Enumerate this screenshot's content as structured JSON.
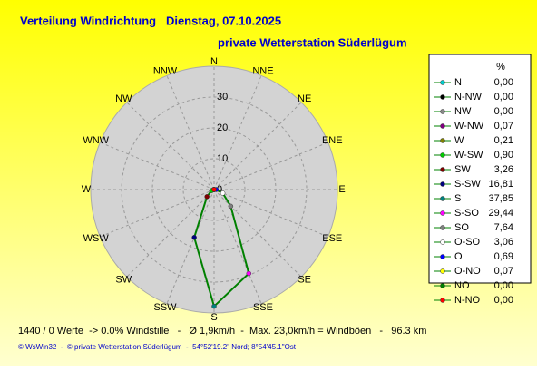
{
  "chart_data": {
    "type": "radar",
    "title": "Verteilung Windrichtung   Dienstag, 07.10.2025",
    "subtitle": "private Wetterstation Süderlügum",
    "axis_labels": [
      "N",
      "NNE",
      "NE",
      "ENE",
      "E",
      "ESE",
      "SE",
      "SSE",
      "S",
      "SSW",
      "SW",
      "WSW",
      "W",
      "WNW",
      "NW",
      "NNW"
    ],
    "rlim": [
      0,
      40
    ],
    "rticks": [
      0,
      10,
      20,
      30
    ],
    "line_color": "#008000",
    "legend_title": "%",
    "categories": [
      "N",
      "N-NW",
      "NW",
      "W-NW",
      "W",
      "W-SW",
      "SW",
      "S-SW",
      "S",
      "S-SO",
      "SO",
      "O-SO",
      "O",
      "O-NO",
      "NO",
      "N-NO"
    ],
    "values": [
      0,
      0,
      0,
      0.07,
      0.21,
      0.9,
      3.26,
      16.81,
      37.85,
      29.44,
      7.64,
      3.06,
      0.69,
      0.07,
      0,
      0
    ],
    "value_labels": [
      "0,00",
      "0,00",
      "0,00",
      "0,07",
      "0,21",
      "0,90",
      "3,26",
      "16,81",
      "37,85",
      "29,44",
      "7,64",
      "3,06",
      "0,69",
      "0,07",
      "0,00",
      "0,00"
    ],
    "colors": [
      "#00cccc",
      "#000000",
      "#888888",
      "#800080",
      "#808000",
      "#00cc00",
      "#800000",
      "#000080",
      "#008080",
      "#ff00ff",
      "#808080",
      "#ffffff",
      "#0000ff",
      "#ffff00",
      "#008000",
      "#ff0000"
    ]
  },
  "footer": {
    "stats": "1440 / 0 Werte  -> 0.0% Windstille   -   Ø 1,9km/h  -  Max. 23,0km/h = Windböen   -   96.3 km",
    "copyright": "© WsWin32  -  © private Wetterstation Süderlügum  -  54°52'19.2\" Nord; 8°54'45.1\"Ost"
  }
}
